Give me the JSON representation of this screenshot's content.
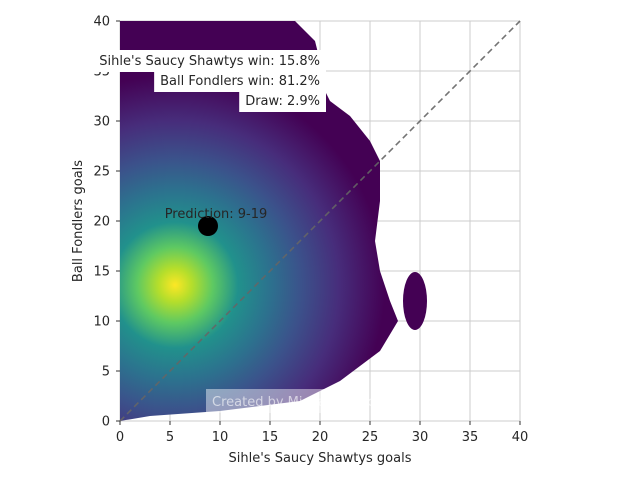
{
  "chart_data": {
    "type": "heatmap",
    "subtype": "kde-density",
    "xlabel": "Sihle's Saucy Shawtys goals",
    "ylabel": "Ball Fondlers goals",
    "xlim": [
      0,
      40
    ],
    "ylim": [
      0,
      40
    ],
    "xticks": [
      0,
      5,
      10,
      15,
      20,
      25,
      30,
      35,
      40
    ],
    "yticks": [
      0,
      5,
      10,
      15,
      20,
      25,
      30,
      35,
      40
    ],
    "grid": true,
    "colormap": "viridis",
    "density_peak": {
      "x": 5.5,
      "y": 13.5
    },
    "density_region": [
      [
        0,
        0
      ],
      [
        3,
        0.5
      ],
      [
        10,
        1
      ],
      [
        18,
        2
      ],
      [
        22,
        4
      ],
      [
        26,
        7
      ],
      [
        27.8,
        10
      ],
      [
        27,
        12
      ],
      [
        26,
        15
      ],
      [
        25.5,
        18
      ],
      [
        26,
        22
      ],
      [
        26,
        26
      ],
      [
        25,
        28
      ],
      [
        23,
        30.5
      ],
      [
        21,
        32
      ],
      [
        20.5,
        33
      ],
      [
        20,
        36
      ],
      [
        19.5,
        38
      ],
      [
        17.5,
        40
      ],
      [
        0,
        40
      ]
    ],
    "density_island": {
      "cx": 29.5,
      "cy": 12,
      "rx": 1.2,
      "ry": 2.9
    },
    "prediction_point": {
      "x": 8.8,
      "y": 19.5
    },
    "prediction_label": "Prediction: 9-19",
    "reference_line": {
      "from": [
        0,
        0
      ],
      "to": [
        40,
        40
      ],
      "style": "dashed"
    },
    "annotations": [
      "Sihle's Saucy Shawtys win: 15.8%",
      "Ball Fondlers win: 81.2%",
      "Draw: 2.9%"
    ],
    "watermark": "Created by Michael Nefiodovas",
    "colors": {
      "viridis_low": "#440154",
      "viridis_high": "#fde725",
      "point": "#000000",
      "grid": "#cccccc",
      "reference_line": "#666666"
    }
  }
}
